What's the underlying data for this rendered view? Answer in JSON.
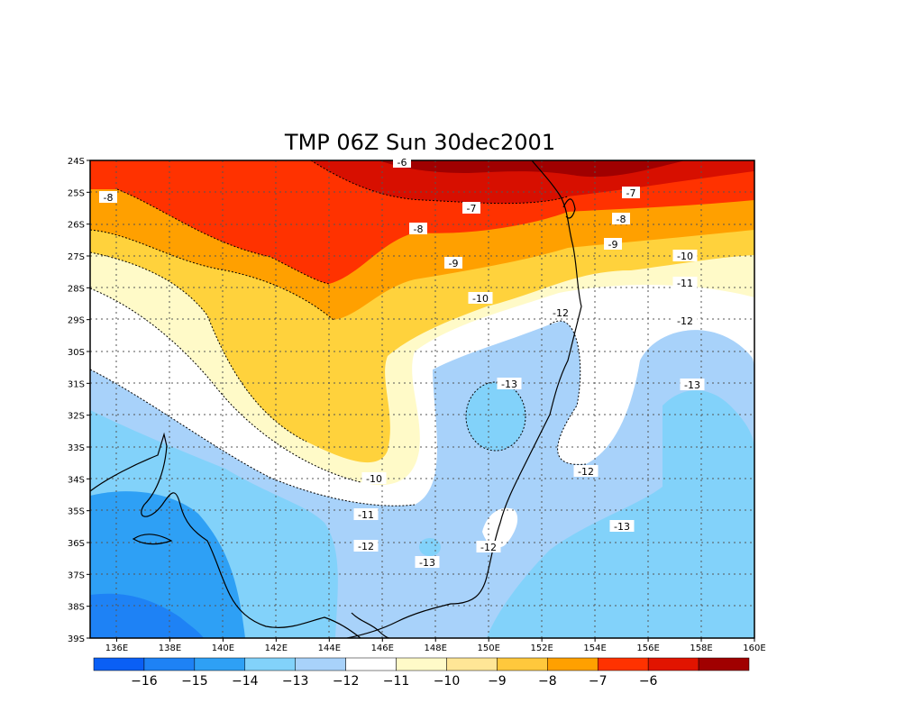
{
  "title": "TMP 06Z Sun 30dec2001",
  "chart_data": {
    "type": "heatmap",
    "variable": "TMP",
    "lat_labels": [
      "24S",
      "25S",
      "26S",
      "27S",
      "28S",
      "29S",
      "30S",
      "31S",
      "32S",
      "33S",
      "34S",
      "35S",
      "36S",
      "37S",
      "38S",
      "39S"
    ],
    "lon_labels": [
      "136E",
      "138E",
      "140E",
      "142E",
      "144E",
      "146E",
      "148E",
      "150E",
      "152E",
      "154E",
      "156E",
      "158E",
      "160E"
    ],
    "lon_range": [
      135,
      160
    ],
    "lat_range": [
      -39,
      -24
    ],
    "grid": true,
    "contour_labels": [
      {
        "text": "-6"
      },
      {
        "text": "-8"
      },
      {
        "text": "-7"
      },
      {
        "text": "-7"
      },
      {
        "text": "-8"
      },
      {
        "text": "-8"
      },
      {
        "text": "-9"
      },
      {
        "text": "-9"
      },
      {
        "text": "-10"
      },
      {
        "text": "-10"
      },
      {
        "text": "-11"
      },
      {
        "text": "-12"
      },
      {
        "text": "-12"
      },
      {
        "text": "-13"
      },
      {
        "text": "-13"
      },
      {
        "text": "-12"
      },
      {
        "text": "-10"
      },
      {
        "text": "-11"
      },
      {
        "text": "-12"
      },
      {
        "text": "-12"
      },
      {
        "text": "-13"
      },
      {
        "text": "-13"
      }
    ],
    "colorbar": {
      "colors": [
        "#0a5ff5",
        "#1e82f5",
        "#2ea0f5",
        "#82d2fa",
        "#a8d2fa",
        "#ffffff",
        "#fffac8",
        "#ffe696",
        "#ffc83c",
        "#ffa000",
        "#ff3200",
        "#e11400",
        "#a00000"
      ],
      "labels": [
        "-16",
        "-15",
        "-14",
        "-13",
        "-12",
        "-11",
        "-10",
        "-9",
        "-8",
        "-7",
        "-6"
      ]
    }
  },
  "colors": {
    "c_lt16": "#0a5ff5",
    "c_16_15": "#1e82f5",
    "c_15_14": "#2ea0f5",
    "c_14_13": "#82d2fa",
    "c_13_12": "#a8d2fa",
    "c_12_11": "#ffffff",
    "c_11_10": "#fffac8",
    "c_10_9": "#ffd23c",
    "c_9_8": "#ffa000",
    "c_8_7": "#ff3200",
    "c_7_6": "#d70f00",
    "c_gt6": "#a00000"
  }
}
